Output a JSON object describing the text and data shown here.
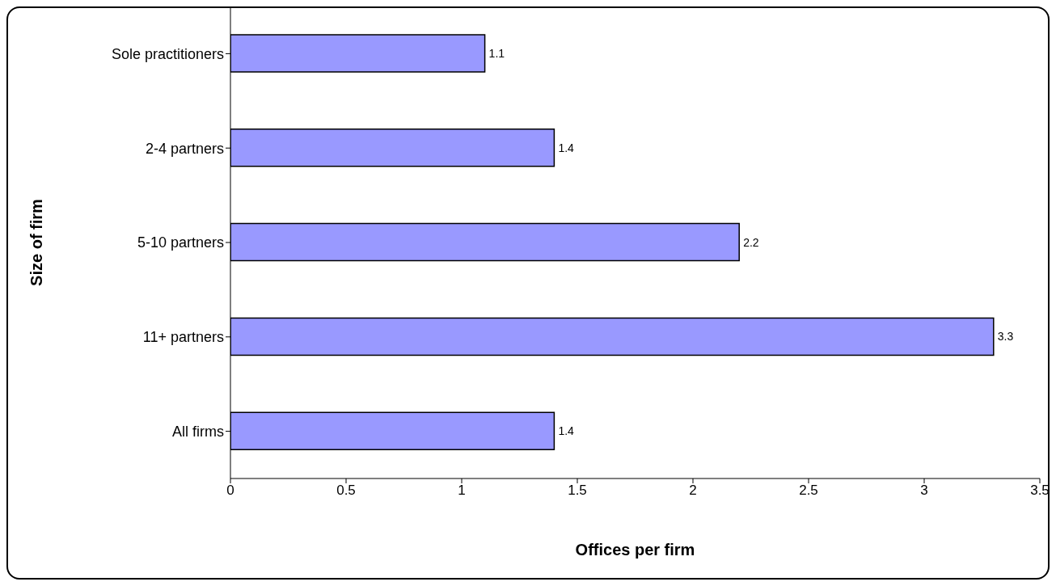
{
  "chart_data": {
    "type": "bar",
    "orientation": "horizontal",
    "xlabel": "Offices per firm",
    "ylabel": "Size of firm",
    "categories": [
      "Sole practitioners",
      "2-4 partners",
      "5-10 partners",
      "11+ partners",
      "All firms"
    ],
    "values": [
      1.1,
      1.4,
      2.2,
      3.3,
      1.4
    ],
    "color": "#9999ff",
    "xlim": [
      0,
      3.5
    ],
    "xticks": [
      0,
      0.5,
      1,
      1.5,
      2,
      2.5,
      3,
      3.5
    ],
    "grid": false,
    "data_labels": true,
    "legend": false
  }
}
